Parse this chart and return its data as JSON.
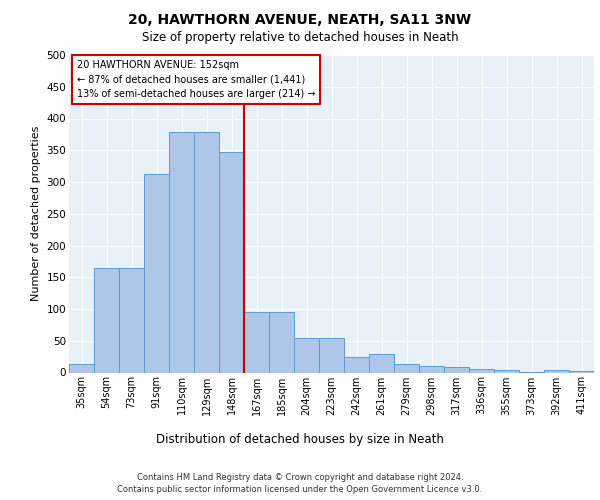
{
  "title": "20, HAWTHORN AVENUE, NEATH, SA11 3NW",
  "subtitle": "Size of property relative to detached houses in Neath",
  "xlabel": "Distribution of detached houses by size in Neath",
  "ylabel": "Number of detached properties",
  "categories": [
    "35sqm",
    "54sqm",
    "73sqm",
    "91sqm",
    "110sqm",
    "129sqm",
    "148sqm",
    "167sqm",
    "185sqm",
    "204sqm",
    "223sqm",
    "242sqm",
    "261sqm",
    "279sqm",
    "298sqm",
    "317sqm",
    "336sqm",
    "355sqm",
    "373sqm",
    "392sqm",
    "411sqm"
  ],
  "values": [
    14,
    165,
    165,
    313,
    378,
    378,
    347,
    95,
    95,
    55,
    55,
    25,
    29,
    14,
    10,
    8,
    6,
    4,
    1,
    4,
    3
  ],
  "bar_color": "#aec6e8",
  "bar_edge_color": "#5b9bd5",
  "vline_color": "#cc0000",
  "annotation_title": "20 HAWTHORN AVENUE: 152sqm",
  "annotation_line1": "← 87% of detached houses are smaller (1,441)",
  "annotation_line2": "13% of semi-detached houses are larger (214) →",
  "annotation_box_color": "#cc0000",
  "footer1": "Contains HM Land Registry data © Crown copyright and database right 2024.",
  "footer2": "Contains public sector information licensed under the Open Government Licence v3.0.",
  "ylim": [
    0,
    500
  ],
  "yticks": [
    0,
    50,
    100,
    150,
    200,
    250,
    300,
    350,
    400,
    450,
    500
  ],
  "bg_color": "#e8f0f8",
  "fig_bg_color": "#ffffff"
}
